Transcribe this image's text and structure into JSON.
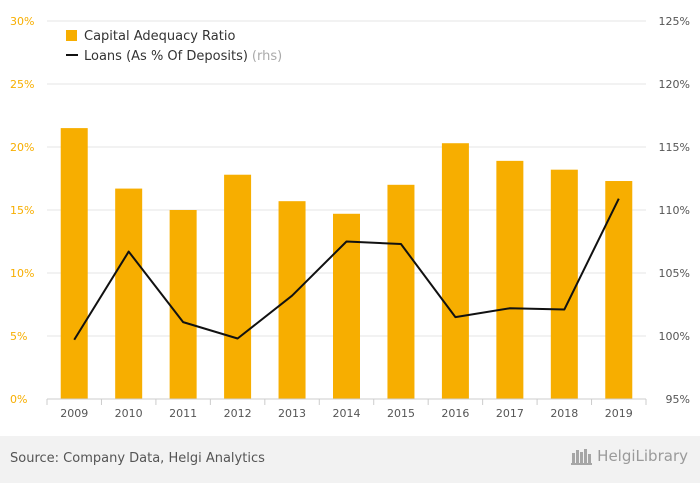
{
  "chart_data": {
    "type": "bar",
    "categories": [
      "2009",
      "2010",
      "2011",
      "2012",
      "2013",
      "2014",
      "2015",
      "2016",
      "2017",
      "2018",
      "2019"
    ],
    "series": [
      {
        "name": "Capital Adequacy Ratio",
        "type": "bar",
        "axis": "left",
        "color": "#f7ae00",
        "values": [
          21.5,
          16.7,
          15.0,
          17.8,
          15.7,
          14.7,
          17.0,
          20.3,
          18.9,
          18.2,
          17.3
        ]
      },
      {
        "name": "Loans (As % Of Deposits)",
        "name_suffix": "(rhs)",
        "type": "line",
        "axis": "right",
        "color": "#111111",
        "values": [
          99.7,
          106.7,
          101.1,
          99.8,
          103.2,
          107.5,
          107.3,
          101.5,
          102.2,
          102.1,
          110.9
        ]
      }
    ],
    "y_left": {
      "ylim": [
        0,
        30
      ],
      "ticks": [
        0,
        5,
        10,
        15,
        20,
        25,
        30
      ],
      "tick_labels": [
        "0%",
        "5%",
        "10%",
        "15%",
        "20%",
        "25%",
        "30%"
      ],
      "color": "#f7ae00"
    },
    "y_right": {
      "ylim": [
        95,
        125
      ],
      "ticks": [
        95,
        100,
        105,
        110,
        115,
        120,
        125
      ],
      "tick_labels": [
        "95%",
        "100%",
        "105%",
        "110%",
        "115%",
        "120%",
        "125%"
      ]
    },
    "grid": true,
    "legend_position": "top-left"
  },
  "footer": {
    "source": "Source: Company Data, Helgi Analytics",
    "logo_text": "HelgiLibrary"
  }
}
